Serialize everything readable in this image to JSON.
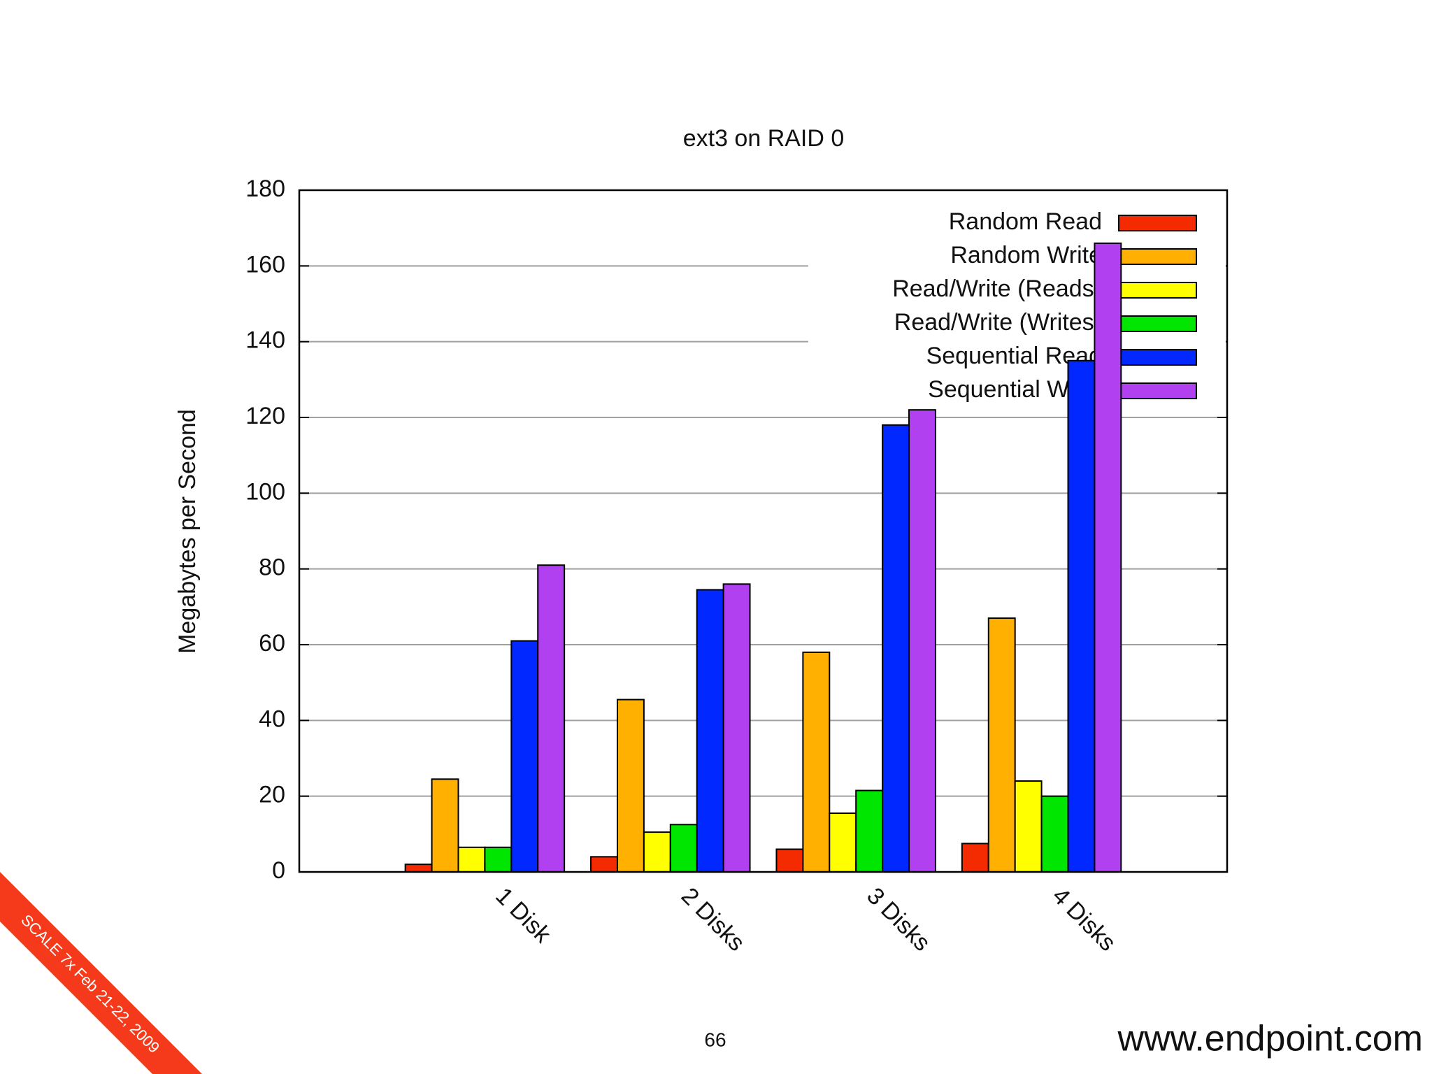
{
  "chart_data": {
    "type": "bar",
    "title": "ext3 on RAID 0",
    "y_label": "Megabytes per Second",
    "categories": [
      "1 Disk",
      "2 Disks",
      "3 Disks",
      "4 Disks"
    ],
    "series": [
      {
        "name": "Random Read",
        "color": "#f42a00",
        "values": [
          2,
          4,
          6,
          7.5
        ]
      },
      {
        "name": "Random Write",
        "color": "#ffb000",
        "values": [
          24.5,
          45.5,
          58,
          67
        ]
      },
      {
        "name": "Read/Write (Reads)",
        "color": "#ffff00",
        "values": [
          6.5,
          10.5,
          15.5,
          24
        ]
      },
      {
        "name": "Read/Write (Writes)",
        "color": "#00e600",
        "values": [
          6.5,
          12.5,
          21.5,
          20
        ]
      },
      {
        "name": "Sequential Read",
        "color": "#0028ff",
        "values": [
          61,
          74.5,
          118,
          135
        ]
      },
      {
        "name": "Sequential Write",
        "color": "#b040f0",
        "values": [
          81,
          76,
          122,
          166
        ]
      }
    ],
    "ylim": [
      0,
      180
    ],
    "yticks": [
      0,
      20,
      40,
      60,
      80,
      100,
      120,
      140,
      160,
      180
    ],
    "grid": true,
    "legend": "top-right"
  },
  "slide_number": "66",
  "footer_url": "www.endpoint.com",
  "banner": "SCALE 7x Feb 21-22, 2009"
}
